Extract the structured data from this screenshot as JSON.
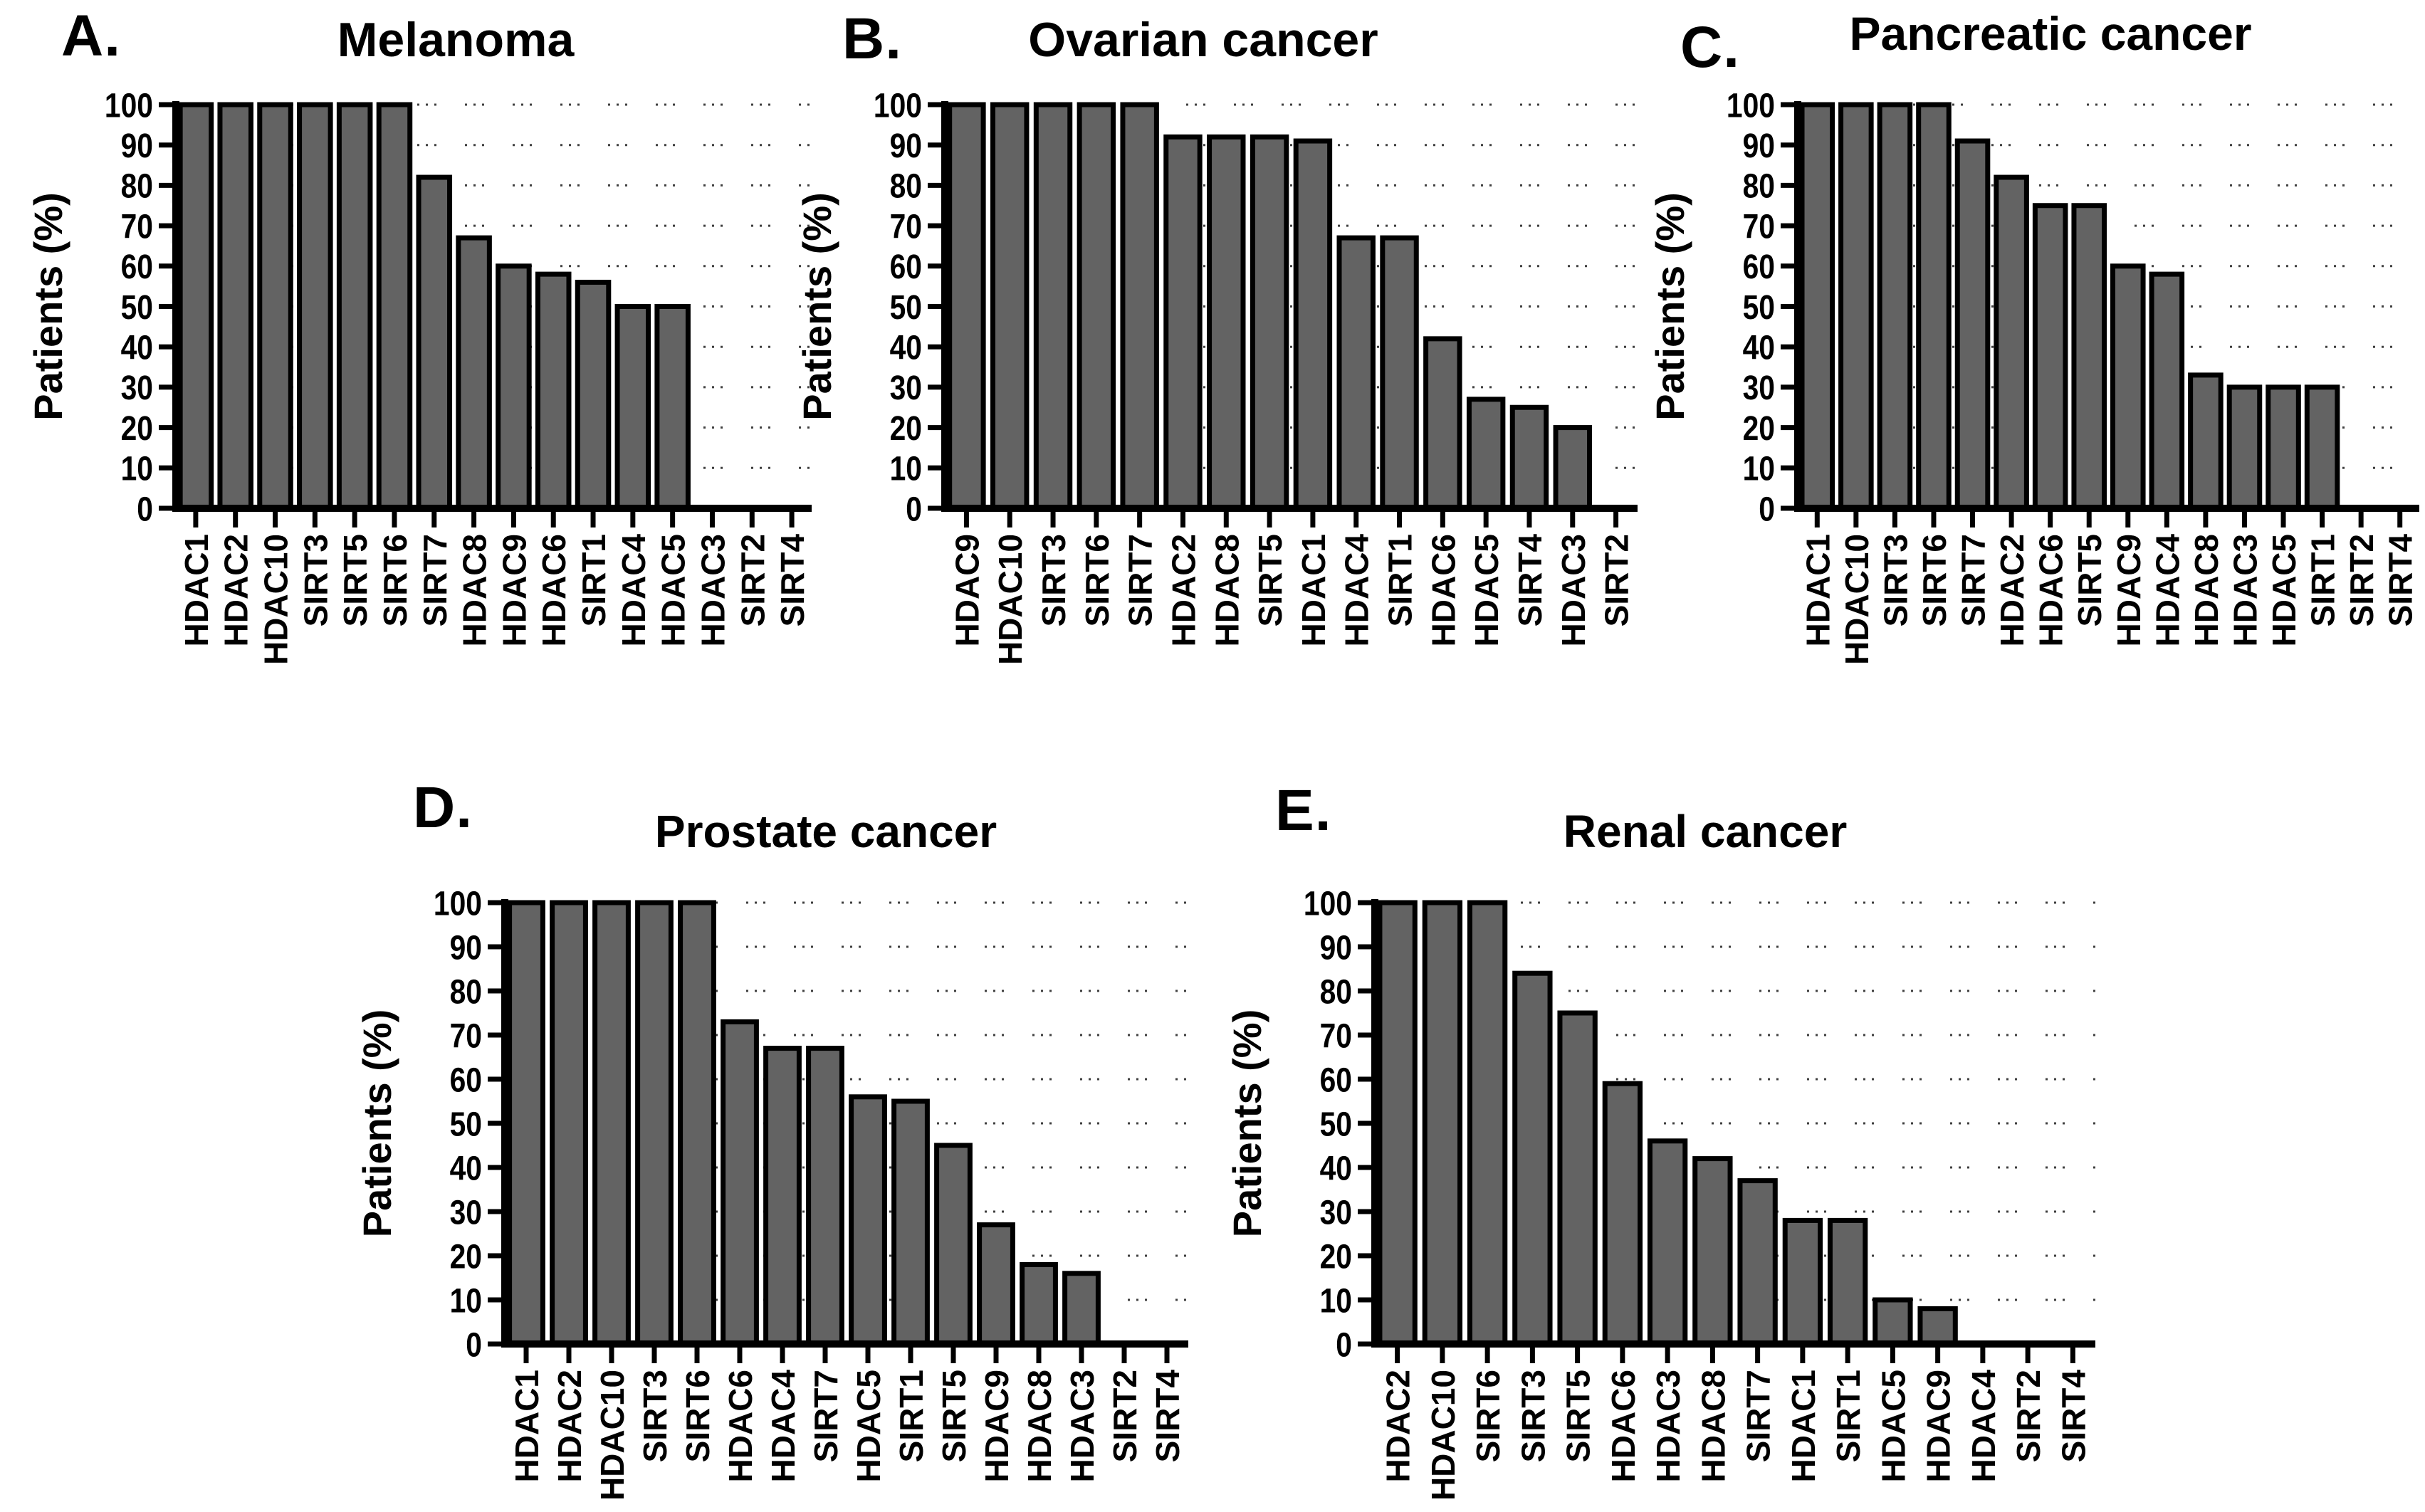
{
  "figure": {
    "description": "Five-panel bar figure of HDAC and SIRT expression frequency by cancer type",
    "ylabel": "Patients (%)",
    "bar_fill": "#636363",
    "bar_edge": "#000000",
    "axis_color": "#000000",
    "grid_color": "#3f3f3f",
    "background": "#ffffff"
  },
  "chart_data": [
    {
      "type": "bar",
      "panel": "A.",
      "title": "Melanoma",
      "ylabel": "Patients (%)",
      "ylim": [
        0,
        100
      ],
      "ytick_step": 10,
      "grid": "dotted",
      "legend": "none",
      "categories": [
        "HDAC1",
        "HDAC2",
        "HDAC10",
        "SIRT3",
        "SIRT5",
        "SIRT6",
        "SIRT7",
        "HDAC8",
        "HDAC9",
        "HDAC6",
        "SIRT1",
        "HDAC4",
        "HDAC5",
        "HDAC3",
        "SIRT2",
        "SIRT4"
      ],
      "values": [
        100,
        100,
        100,
        100,
        100,
        100,
        82,
        67,
        60,
        58,
        56,
        50,
        50,
        0,
        0,
        0
      ]
    },
    {
      "type": "bar",
      "panel": "B.",
      "title": "Ovarian cancer",
      "ylabel": "Patients (%)",
      "ylim": [
        0,
        100
      ],
      "ytick_step": 10,
      "grid": "dotted",
      "legend": "none",
      "categories": [
        "HDAC9",
        "HDAC10",
        "SIRT3",
        "SIRT6",
        "SIRT7",
        "HDAC2",
        "HDAC8",
        "SIRT5",
        "HDAC1",
        "HDAC4",
        "SIRT1",
        "HDAC6",
        "HDAC5",
        "SIRT4",
        "HDAC3",
        "SIRT2"
      ],
      "values": [
        100,
        100,
        100,
        100,
        100,
        92,
        92,
        92,
        91,
        67,
        67,
        42,
        27,
        25,
        20,
        0
      ]
    },
    {
      "type": "bar",
      "panel": "C.",
      "title": "Pancreatic cancer",
      "ylabel": "Patients (%)",
      "ylim": [
        0,
        100
      ],
      "ytick_step": 10,
      "grid": "dotted",
      "legend": "none",
      "categories": [
        "HDAC1",
        "HDAC10",
        "SIRT3",
        "SIRT6",
        "SIRT7",
        "HDAC2",
        "HDAC6",
        "SIRT5",
        "HDAC9",
        "HDAC4",
        "HDAC8",
        "HDAC3",
        "HDAC5",
        "SIRT1",
        "SIRT2",
        "SIRT4"
      ],
      "values": [
        100,
        100,
        100,
        100,
        91,
        82,
        75,
        75,
        60,
        58,
        33,
        30,
        30,
        30,
        0,
        0
      ]
    },
    {
      "type": "bar",
      "panel": "D.",
      "title": "Prostate cancer",
      "ylabel": "Patients (%)",
      "ylim": [
        0,
        100
      ],
      "ytick_step": 10,
      "grid": "dotted",
      "legend": "none",
      "categories": [
        "HDAC1",
        "HDAC2",
        "HDAC10",
        "SIRT3",
        "SIRT6",
        "HDAC6",
        "HDAC4",
        "SIRT7",
        "HDAC5",
        "SIRT1",
        "SIRT5",
        "HDAC9",
        "HDAC8",
        "HDAC3",
        "SIRT2",
        "SIRT4"
      ],
      "values": [
        100,
        100,
        100,
        100,
        100,
        73,
        67,
        67,
        56,
        55,
        45,
        27,
        18,
        16,
        0,
        0
      ]
    },
    {
      "type": "bar",
      "panel": "E.",
      "title": "Renal cancer",
      "ylabel": "Patients (%)",
      "ylim": [
        0,
        100
      ],
      "ytick_step": 10,
      "grid": "dotted",
      "legend": "none",
      "categories": [
        "HDAC2",
        "HDAC10",
        "SIRT6",
        "SIRT3",
        "SIRT5",
        "HDAC6",
        "HDAC3",
        "HDAC8",
        "SIRT7",
        "HDAC1",
        "SIRT1",
        "HDAC5",
        "HDAC9",
        "HDAC4",
        "SIRT2",
        "SIRT4"
      ],
      "values": [
        100,
        100,
        100,
        84,
        75,
        59,
        46,
        42,
        37,
        28,
        28,
        10,
        8,
        0,
        0,
        0
      ]
    }
  ]
}
